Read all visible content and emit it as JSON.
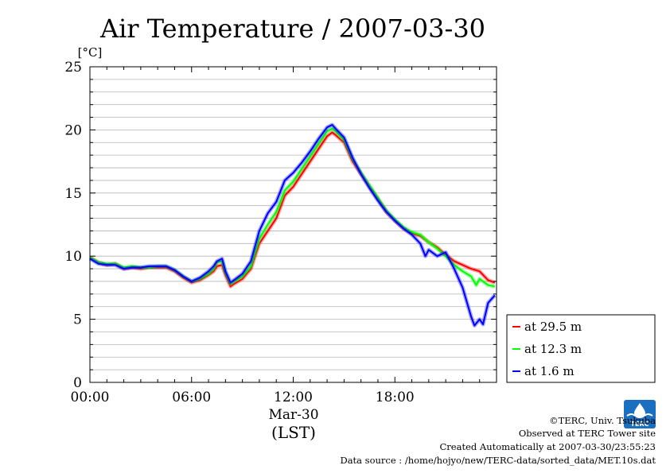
{
  "chart_data": {
    "type": "line",
    "title": "Air Temperature / 2007-03-30",
    "ylabel": "[°C]",
    "xlabel_date": "Mar-30",
    "xlabel": "(LST)",
    "ylim": [
      0,
      25
    ],
    "xlim": [
      0,
      24
    ],
    "yticks": [
      0,
      5,
      10,
      15,
      20,
      25
    ],
    "xticks": [
      {
        "value": 0,
        "label": "00:00"
      },
      {
        "value": 6,
        "label": "06:00"
      },
      {
        "value": 12,
        "label": "12:00"
      },
      {
        "value": 18,
        "label": "18:00"
      }
    ],
    "grid": true,
    "legend_position": "right-bottom",
    "series": [
      {
        "name": "at 29.5 m",
        "color": "#ff0000",
        "points": [
          [
            0,
            9.9
          ],
          [
            0.5,
            9.5
          ],
          [
            1,
            9.3
          ],
          [
            1.5,
            9.4
          ],
          [
            2,
            9.0
          ],
          [
            2.5,
            9.1
          ],
          [
            3,
            9.0
          ],
          [
            3.5,
            9.1
          ],
          [
            4,
            9.1
          ],
          [
            4.5,
            9.1
          ],
          [
            5,
            8.8
          ],
          [
            5.5,
            8.3
          ],
          [
            6,
            7.9
          ],
          [
            6.5,
            8.1
          ],
          [
            7,
            8.5
          ],
          [
            7.3,
            8.8
          ],
          [
            7.5,
            9.2
          ],
          [
            7.8,
            9.3
          ],
          [
            8,
            8.5
          ],
          [
            8.3,
            7.6
          ],
          [
            8.5,
            7.8
          ],
          [
            9,
            8.2
          ],
          [
            9.5,
            9.0
          ],
          [
            10,
            11.0
          ],
          [
            10.5,
            12.0
          ],
          [
            11,
            13.0
          ],
          [
            11.5,
            14.8
          ],
          [
            12,
            15.5
          ],
          [
            12.5,
            16.5
          ],
          [
            13,
            17.5
          ],
          [
            13.5,
            18.5
          ],
          [
            14,
            19.5
          ],
          [
            14.3,
            19.8
          ],
          [
            14.5,
            19.6
          ],
          [
            15,
            19.0
          ],
          [
            15.5,
            17.5
          ],
          [
            16,
            16.5
          ],
          [
            16.5,
            15.5
          ],
          [
            17,
            14.5
          ],
          [
            17.5,
            13.5
          ],
          [
            18,
            12.8
          ],
          [
            18.5,
            12.2
          ],
          [
            19,
            11.8
          ],
          [
            19.5,
            11.6
          ],
          [
            20,
            11.1
          ],
          [
            20.5,
            10.7
          ],
          [
            21,
            10.1
          ],
          [
            21.5,
            9.6
          ],
          [
            22,
            9.3
          ],
          [
            22.5,
            9.0
          ],
          [
            23,
            8.8
          ],
          [
            23.5,
            8.1
          ],
          [
            23.9,
            7.9
          ]
        ]
      },
      {
        "name": "at 12.3 m",
        "color": "#00ff00",
        "points": [
          [
            0,
            9.9
          ],
          [
            0.5,
            9.5
          ],
          [
            1,
            9.4
          ],
          [
            1.5,
            9.4
          ],
          [
            2,
            9.1
          ],
          [
            2.5,
            9.2
          ],
          [
            3,
            9.1
          ],
          [
            3.5,
            9.1
          ],
          [
            4,
            9.2
          ],
          [
            4.5,
            9.2
          ],
          [
            5,
            8.9
          ],
          [
            5.5,
            8.4
          ],
          [
            6,
            8.0
          ],
          [
            6.5,
            8.2
          ],
          [
            7,
            8.6
          ],
          [
            7.3,
            9.0
          ],
          [
            7.5,
            9.5
          ],
          [
            7.8,
            9.6
          ],
          [
            8,
            8.7
          ],
          [
            8.3,
            7.8
          ],
          [
            8.5,
            8.0
          ],
          [
            9,
            8.4
          ],
          [
            9.5,
            9.2
          ],
          [
            10,
            11.4
          ],
          [
            10.5,
            12.5
          ],
          [
            11,
            13.5
          ],
          [
            11.5,
            15.2
          ],
          [
            12,
            15.9
          ],
          [
            12.5,
            16.9
          ],
          [
            13,
            17.9
          ],
          [
            13.5,
            18.9
          ],
          [
            14,
            19.9
          ],
          [
            14.3,
            20.1
          ],
          [
            14.5,
            19.9
          ],
          [
            15,
            19.2
          ],
          [
            15.5,
            17.7
          ],
          [
            16,
            16.6
          ],
          [
            16.5,
            15.6
          ],
          [
            17,
            14.6
          ],
          [
            17.5,
            13.6
          ],
          [
            18,
            12.9
          ],
          [
            18.5,
            12.3
          ],
          [
            19,
            11.9
          ],
          [
            19.5,
            11.7
          ],
          [
            20,
            11.1
          ],
          [
            20.5,
            10.6
          ],
          [
            21,
            10.0
          ],
          [
            21.5,
            9.3
          ],
          [
            22,
            8.8
          ],
          [
            22.5,
            8.4
          ],
          [
            22.8,
            7.7
          ],
          [
            23,
            8.2
          ],
          [
            23.5,
            7.7
          ],
          [
            23.9,
            7.6
          ]
        ]
      },
      {
        "name": "at 1.6 m",
        "color": "#0000ff",
        "points": [
          [
            0,
            9.8
          ],
          [
            0.5,
            9.4
          ],
          [
            1,
            9.3
          ],
          [
            1.5,
            9.3
          ],
          [
            2,
            9.0
          ],
          [
            2.5,
            9.1
          ],
          [
            3,
            9.1
          ],
          [
            3.5,
            9.2
          ],
          [
            4,
            9.2
          ],
          [
            4.5,
            9.2
          ],
          [
            5,
            8.9
          ],
          [
            5.5,
            8.4
          ],
          [
            6,
            8.0
          ],
          [
            6.5,
            8.3
          ],
          [
            7,
            8.8
          ],
          [
            7.3,
            9.2
          ],
          [
            7.5,
            9.6
          ],
          [
            7.8,
            9.8
          ],
          [
            8,
            8.8
          ],
          [
            8.3,
            7.9
          ],
          [
            8.5,
            8.1
          ],
          [
            9,
            8.6
          ],
          [
            9.5,
            9.6
          ],
          [
            10,
            12.0
          ],
          [
            10.5,
            13.4
          ],
          [
            11,
            14.3
          ],
          [
            11.5,
            16.0
          ],
          [
            12,
            16.6
          ],
          [
            12.5,
            17.4
          ],
          [
            13,
            18.3
          ],
          [
            13.5,
            19.3
          ],
          [
            14,
            20.2
          ],
          [
            14.3,
            20.4
          ],
          [
            14.5,
            20.1
          ],
          [
            15,
            19.4
          ],
          [
            15.5,
            17.8
          ],
          [
            16,
            16.5
          ],
          [
            16.5,
            15.4
          ],
          [
            17,
            14.4
          ],
          [
            17.5,
            13.5
          ],
          [
            18,
            12.8
          ],
          [
            18.5,
            12.2
          ],
          [
            19,
            11.7
          ],
          [
            19.5,
            11.0
          ],
          [
            19.8,
            10.0
          ],
          [
            20,
            10.5
          ],
          [
            20.5,
            10.0
          ],
          [
            21,
            10.3
          ],
          [
            21.5,
            9.0
          ],
          [
            22,
            7.5
          ],
          [
            22.5,
            5.2
          ],
          [
            22.7,
            4.5
          ],
          [
            23,
            5.0
          ],
          [
            23.2,
            4.6
          ],
          [
            23.5,
            6.3
          ],
          [
            23.9,
            6.9
          ]
        ]
      }
    ]
  },
  "footer": {
    "copyright": "©TERC, Univ. Tsukuba",
    "observed": "Observed at TERC Tower site",
    "created": "Created Automatically at 2007-03-30/23:55:23",
    "source": "Data source : /home/hojyo/new/TERC-data/sorted_data/MET.10s.dat"
  },
  "logo": {
    "icon": "terc-logo-icon",
    "text": "TERC",
    "color": "#1a6fc0"
  }
}
